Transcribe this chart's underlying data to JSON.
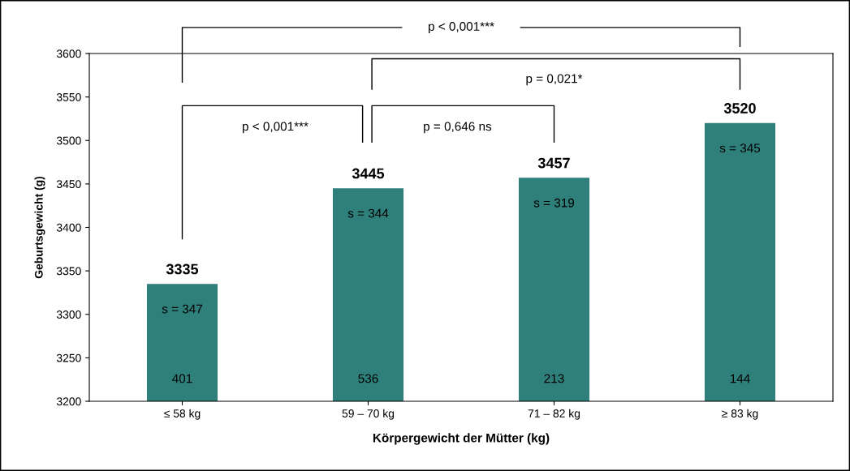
{
  "chart_data": {
    "type": "bar",
    "categories": [
      "≤ 58 kg",
      "59 – 70 kg",
      "71 – 82 kg",
      "≥ 83 kg"
    ],
    "values": [
      3335,
      3445,
      3457,
      3520
    ],
    "color": "#2f7f7b",
    "data_labels": true,
    "xlabel": "Körpergewicht der Mütter (kg)",
    "ylabel": "Geburtsgewicht (g)",
    "ylim": [
      3200,
      3600
    ],
    "yticks": [
      3200,
      3250,
      3300,
      3350,
      3400,
      3450,
      3500,
      3550,
      3600
    ],
    "grid": false,
    "annotations": [
      "s = 347",
      "s = 344",
      "s = 319",
      "s = 345",
      "401",
      "536",
      "213",
      "144",
      "p < 0,001***",
      "p = 0,646 ns",
      "p = 0,021*",
      "p < 0,001***"
    ]
  }
}
